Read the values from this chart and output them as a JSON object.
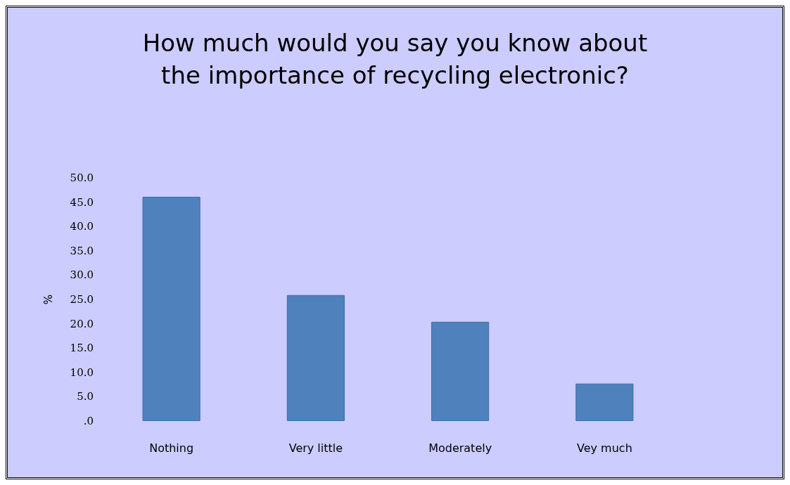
{
  "chart_data": {
    "type": "bar",
    "title": "How much would you say you know about\nthe importance of recycling electronic?",
    "ylabel": "%",
    "categories": [
      "Nothing",
      "Very little",
      "Moderately",
      "Vey much"
    ],
    "values": [
      46.1,
      25.9,
      20.4,
      7.7
    ],
    "color": "#4f81bd",
    "ylim": [
      0,
      50
    ],
    "yticks": [
      {
        "value": 0,
        "label": ".0"
      },
      {
        "value": 5,
        "label": "5.0"
      },
      {
        "value": 10,
        "label": "10.0"
      },
      {
        "value": 15,
        "label": "15.0"
      },
      {
        "value": 20,
        "label": "20.0"
      },
      {
        "value": 25,
        "label": "25.0"
      },
      {
        "value": 30,
        "label": "30.0"
      },
      {
        "value": 35,
        "label": "35.0"
      },
      {
        "value": 40,
        "label": "40.0"
      },
      {
        "value": 45,
        "label": "45.0"
      },
      {
        "value": 50,
        "label": "50.0"
      }
    ],
    "grid": false
  }
}
